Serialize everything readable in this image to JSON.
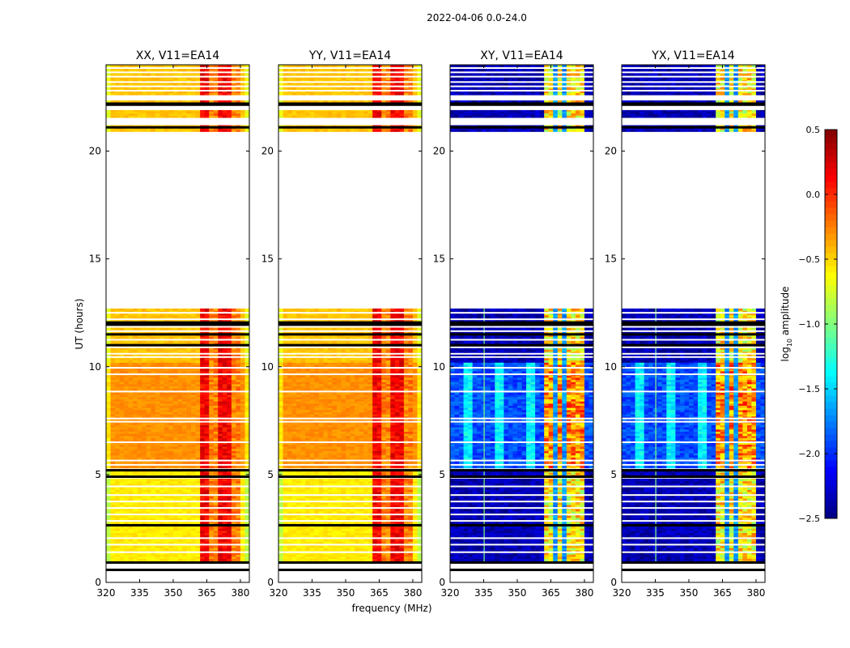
{
  "chart_data": {
    "type": "heatmap",
    "suptitle": "2022-04-06 0.0-24.0",
    "xlabel": "frequency (MHz)",
    "ylabel": "UT (hours)",
    "xlim": [
      320,
      384
    ],
    "ylim": [
      0,
      24
    ],
    "xticks": [
      "320",
      "335",
      "350",
      "365",
      "380"
    ],
    "xtick_values": [
      320,
      335,
      350,
      365,
      380
    ],
    "yticks": [
      "0",
      "5",
      "10",
      "15",
      "20"
    ],
    "ytick_values": [
      0,
      5,
      10,
      15,
      20
    ],
    "panels": [
      {
        "title": "XX, V11=EA14",
        "kind": "parallel"
      },
      {
        "title": "YY, V11=EA14",
        "kind": "parallel"
      },
      {
        "title": "XY, V11=EA14",
        "kind": "cross"
      },
      {
        "title": "YX, V11=EA14",
        "kind": "cross"
      }
    ],
    "data_bands_hours": [
      {
        "t0": 0.9,
        "t1": 5.2,
        "state": "quiet"
      },
      {
        "t0": 5.3,
        "t1": 10.2,
        "state": "active"
      },
      {
        "t0": 10.2,
        "t1": 12.7,
        "state": "quiet"
      },
      {
        "t0": 20.9,
        "t1": 21.2,
        "state": "quiet"
      },
      {
        "t0": 21.55,
        "t1": 21.9,
        "state": "quiet"
      },
      {
        "t0": 22.25,
        "t1": 22.35,
        "state": "quiet"
      },
      {
        "t0": 22.6,
        "t1": 24.0,
        "state": "quiet"
      }
    ],
    "gap_hours": [
      1.4,
      1.75,
      2.05,
      2.85,
      3.15,
      3.45,
      3.75,
      4.05,
      4.45,
      4.85,
      5.45,
      5.65,
      6.5,
      7.45,
      7.6,
      8.85,
      9.65,
      9.95,
      10.45,
      10.6,
      10.9,
      11.25,
      11.65,
      11.85,
      12.2,
      12.5,
      22.8,
      23.0,
      23.2,
      23.45,
      23.65,
      23.85
    ],
    "flag_hours": [
      0.58,
      0.92,
      2.65,
      4.9,
      5.2,
      11.0,
      11.5,
      11.95,
      12.05,
      22.15,
      22.2,
      21.1
    ],
    "parallel_levels": {
      "base": -0.45,
      "band_high": 0.15,
      "band_low": -0.25
    },
    "cross_levels": {
      "quiet": -2.35,
      "active": -1.9,
      "stripe": -1.4,
      "band": -0.6,
      "divider": -1.7
    },
    "bright_band_mhz": [
      362,
      380
    ],
    "colorbar": {
      "label": "log10 amplitude",
      "label_main": "log",
      "label_sub": "10",
      "label_rest": " amplitude",
      "range": [
        -2.5,
        0.5
      ],
      "ticks": [
        "0.5",
        "0.0",
        "−0.5",
        "−1.0",
        "−1.5",
        "−2.0",
        "−2.5"
      ],
      "tick_values": [
        0.5,
        0.0,
        -0.5,
        -1.0,
        -1.5,
        -2.0,
        -2.5
      ],
      "colormap": "jet"
    }
  }
}
